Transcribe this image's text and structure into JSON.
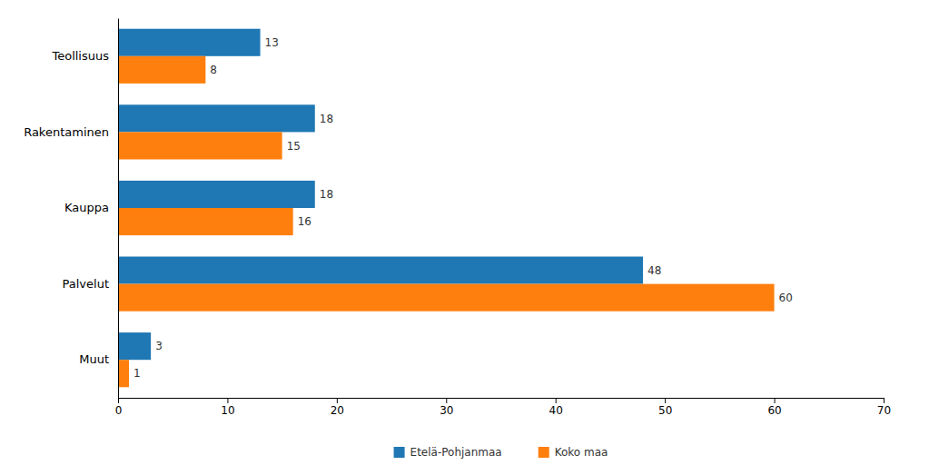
{
  "chart_data": {
    "type": "bar",
    "orientation": "horizontal",
    "categories": [
      "Teollisuus",
      "Rakentaminen",
      "Kauppa",
      "Palvelut",
      "Muut"
    ],
    "series": [
      {
        "name": "Etelä-Pohjanmaa",
        "values": [
          13,
          18,
          18,
          48,
          3
        ]
      },
      {
        "name": "Koko maa",
        "values": [
          8,
          15,
          16,
          60,
          1
        ]
      }
    ],
    "xlim": [
      0,
      70
    ],
    "xticks": [
      0,
      10,
      20,
      30,
      40,
      50,
      60,
      70
    ],
    "grid": false,
    "legend": "bottom",
    "data_labels": true
  }
}
